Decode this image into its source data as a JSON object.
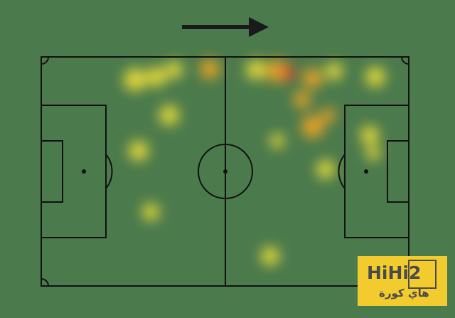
{
  "colors": {
    "background": "#4b7a4c",
    "lines": "#111111",
    "heat_low": "#f2e23a",
    "heat_mid": "#f5a623",
    "heat_high": "#f03a2a",
    "logo_bg": "#f2cc2e"
  },
  "direction_icon": "arrow-right-icon",
  "logo": {
    "latin": "HiHi2",
    "arabic": "هاي كورة"
  }
}
